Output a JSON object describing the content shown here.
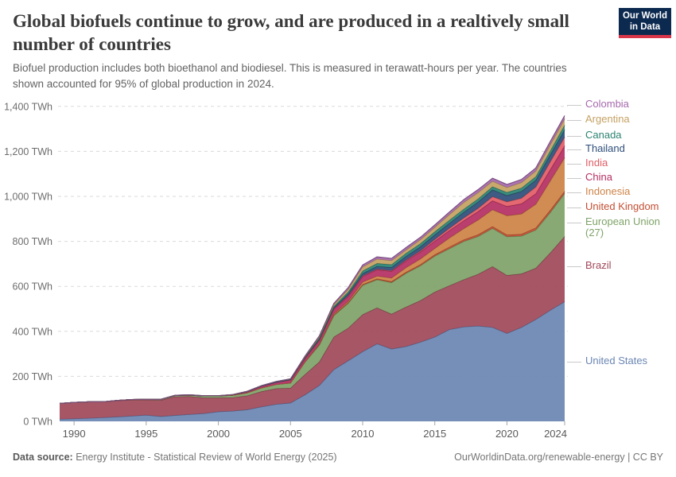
{
  "header": {
    "title": "Global biofuels continue to grow, and are produced in a realtively small number of countries",
    "subtitle": "Biofuel production includes both bioethanol and biodiesel. This is measured in terawatt-hours per year. The countries shown accounted for 95% of global production in 2024.",
    "logo_line1": "Our World",
    "logo_line2": "in Data"
  },
  "chart_data": {
    "type": "area",
    "stacked": true,
    "title": "Global biofuels continue to grow, and are produced in a realtively small number of countries",
    "subtitle": "Biofuel production includes both bioethanol and biodiesel. This is measured in terawatt-hours per year. The countries shown accounted for 95% of global production in 2024.",
    "unit": "TWh",
    "ylim": [
      0,
      1400
    ],
    "y_ticks": [
      0,
      200,
      400,
      600,
      800,
      1000,
      1200,
      1400
    ],
    "y_tick_suffix": " TWh",
    "x_ticks": [
      1990,
      1995,
      2000,
      2005,
      2010,
      2015,
      2020,
      2024
    ],
    "grid": "dashed-horizontal",
    "legend_position": "right",
    "years": [
      1989,
      1990,
      1991,
      1992,
      1993,
      1994,
      1995,
      1996,
      1997,
      1998,
      1999,
      2000,
      2001,
      2002,
      2003,
      2004,
      2005,
      2006,
      2007,
      2008,
      2009,
      2010,
      2011,
      2012,
      2013,
      2014,
      2015,
      2016,
      2017,
      2018,
      2019,
      2020,
      2021,
      2022,
      2023,
      2024
    ],
    "series": [
      {
        "name": "United States",
        "color": "#6b86b4",
        "values": [
          10,
          12,
          14,
          17,
          20,
          24,
          28,
          22,
          27,
          31,
          35,
          43,
          46,
          52,
          65,
          76,
          82,
          118,
          160,
          230,
          270,
          310,
          345,
          322,
          333,
          352,
          375,
          408,
          420,
          424,
          418,
          391,
          418,
          453,
          494,
          532
        ]
      },
      {
        "name": "Brazil",
        "color": "#a0495a",
        "values": [
          70,
          72,
          73,
          70,
          72,
          71,
          67,
          72,
          83,
          80,
          70,
          62,
          60,
          62,
          68,
          70,
          66,
          90,
          105,
          145,
          145,
          165,
          160,
          155,
          175,
          185,
          200,
          195,
          210,
          230,
          270,
          258,
          238,
          228,
          255,
          290
        ]
      },
      {
        "name": "European Union (27)",
        "color": "#7fa368",
        "values": [
          0,
          0,
          0,
          0,
          1,
          2,
          3,
          4,
          5,
          6,
          8,
          8,
          10,
          13,
          16,
          18,
          22,
          55,
          75,
          95,
          110,
          130,
          125,
          140,
          150,
          155,
          160,
          165,
          170,
          168,
          170,
          172,
          168,
          170,
          180,
          191
        ]
      },
      {
        "name": "United Kingdom",
        "color": "#c44e32",
        "values": [
          0,
          0,
          0,
          0,
          0,
          0,
          0,
          0,
          0,
          0,
          0,
          0,
          0,
          0,
          0,
          0,
          1,
          1,
          2,
          3,
          3,
          4,
          4,
          5,
          5,
          5,
          6,
          7,
          7,
          8,
          8,
          8,
          8,
          9,
          10,
          10
        ]
      },
      {
        "name": "Indonesia",
        "color": "#ce8347",
        "values": [
          0,
          0,
          0,
          0,
          0,
          0,
          0,
          0,
          0,
          0,
          0,
          0,
          0,
          0,
          0,
          0,
          0,
          0,
          2,
          5,
          6,
          10,
          12,
          15,
          20,
          25,
          28,
          40,
          50,
          65,
          75,
          85,
          90,
          105,
          130,
          149
        ]
      },
      {
        "name": "China",
        "color": "#b52f63",
        "values": [
          0,
          0,
          0,
          0,
          0,
          0,
          0,
          0,
          0,
          0,
          0,
          0,
          2,
          5,
          8,
          10,
          12,
          14,
          16,
          20,
          22,
          25,
          28,
          30,
          30,
          31,
          32,
          33,
          35,
          38,
          40,
          42,
          45,
          47,
          50,
          53
        ]
      },
      {
        "name": "India",
        "color": "#e25c66",
        "values": [
          0,
          0,
          0,
          0,
          0,
          0,
          0,
          0,
          0,
          0,
          0,
          0,
          0,
          0,
          0,
          0,
          1,
          2,
          2,
          2,
          3,
          3,
          3,
          3,
          4,
          5,
          8,
          10,
          12,
          14,
          18,
          20,
          25,
          30,
          35,
          39
        ]
      },
      {
        "name": "Thailand",
        "color": "#2f4f7a",
        "values": [
          0,
          0,
          0,
          0,
          0,
          0,
          0,
          0,
          0,
          0,
          0,
          0,
          0,
          0,
          0,
          0,
          2,
          3,
          4,
          5,
          8,
          10,
          12,
          14,
          16,
          18,
          20,
          22,
          25,
          28,
          30,
          28,
          30,
          30,
          31,
          32
        ]
      },
      {
        "name": "Canada",
        "color": "#2c8372",
        "values": [
          0,
          0,
          0,
          0,
          0,
          0,
          0,
          0,
          1,
          1,
          1,
          1,
          1,
          2,
          2,
          3,
          3,
          4,
          6,
          6,
          9,
          12,
          13,
          13,
          14,
          14,
          14,
          14,
          14,
          14,
          14,
          14,
          15,
          16,
          18,
          21
        ]
      },
      {
        "name": "Argentina",
        "color": "#c5a163",
        "values": [
          0,
          0,
          0,
          0,
          0,
          0,
          0,
          0,
          0,
          0,
          0,
          0,
          0,
          0,
          0,
          0,
          0,
          0,
          5,
          8,
          12,
          18,
          20,
          18,
          15,
          18,
          20,
          25,
          30,
          28,
          25,
          22,
          25,
          25,
          27,
          28
        ]
      },
      {
        "name": "Colombia",
        "color": "#a669ad",
        "values": [
          0,
          0,
          0,
          0,
          0,
          0,
          0,
          0,
          0,
          0,
          0,
          0,
          0,
          0,
          0,
          0,
          0,
          3,
          4,
          5,
          7,
          8,
          9,
          9,
          10,
          10,
          10,
          11,
          12,
          13,
          13,
          13,
          13,
          13,
          14,
          14
        ]
      }
    ],
    "legend_top_to_bottom": [
      "Colombia",
      "Argentina",
      "Canada",
      "Thailand",
      "India",
      "China",
      "Indonesia",
      "United Kingdom",
      "European Union (27)",
      "Brazil",
      "United States"
    ]
  },
  "footer": {
    "source_label": "Data source:",
    "source_text": " Energy Institute - Statistical Review of World Energy (2025)",
    "attribution": "OurWorldinData.org/renewable-energy | CC BY"
  }
}
